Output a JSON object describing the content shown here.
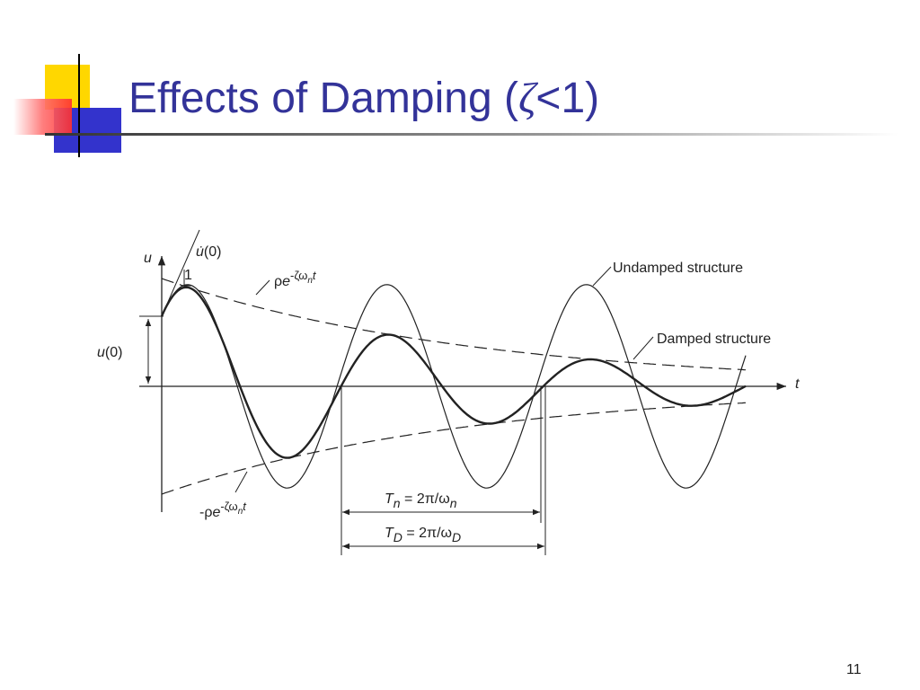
{
  "title": {
    "parts": [
      "Effects of Damping (",
      "ζ",
      "<1)"
    ]
  },
  "diagram": {
    "axis_u": "u",
    "axis_t": "t",
    "initial_velocity": {
      "parts": [
        "u̇",
        "(0)"
      ]
    },
    "slope": "1",
    "envelope_upper": {
      "parts": [
        "ρ",
        "e",
        "-ζω",
        "n",
        "t"
      ]
    },
    "envelope_lower": {
      "parts": [
        "-ρ",
        "e",
        "-ζω",
        "n",
        "t"
      ]
    },
    "undamped_label": "Undamped structure",
    "damped_label": "Damped structure",
    "initial_displacement": {
      "parts": [
        "u",
        "(0)"
      ]
    },
    "period_undamped": {
      "parts": [
        "T",
        "n",
        " = 2π/ω",
        "n"
      ]
    },
    "period_damped": {
      "parts": [
        "T",
        "D",
        " = 2π/ω",
        "D"
      ]
    }
  },
  "page_number": "11"
}
